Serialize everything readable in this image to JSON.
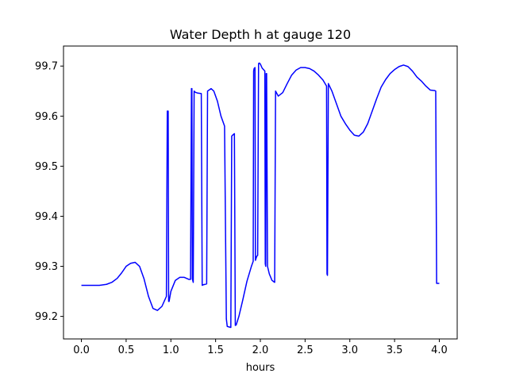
{
  "chart_data": {
    "type": "line",
    "title": "Water Depth h at gauge 120",
    "xlabel": "hours",
    "ylabel": "",
    "xlim": [
      -0.2,
      4.2
    ],
    "ylim": [
      99.155,
      99.74
    ],
    "xticks": [
      "0.0",
      "0.5",
      "1.0",
      "1.5",
      "2.0",
      "2.5",
      "3.0",
      "3.5",
      "4.0"
    ],
    "yticks": [
      "99.2",
      "99.3",
      "99.4",
      "99.5",
      "99.6",
      "99.7"
    ],
    "grid": false,
    "line_color": "#0000ff",
    "series": [
      {
        "name": "",
        "x": [
          0.0,
          0.1,
          0.2,
          0.28,
          0.34,
          0.4,
          0.45,
          0.5,
          0.55,
          0.6,
          0.65,
          0.7,
          0.75,
          0.8,
          0.85,
          0.9,
          0.95,
          0.96,
          0.97,
          0.975,
          0.98,
          1.0,
          1.05,
          1.1,
          1.15,
          1.2,
          1.22,
          1.23,
          1.235,
          1.24,
          1.25,
          1.26,
          1.27,
          1.3,
          1.34,
          1.35,
          1.36,
          1.4,
          1.41,
          1.45,
          1.48,
          1.52,
          1.56,
          1.6,
          1.62,
          1.63,
          1.67,
          1.68,
          1.69,
          1.71,
          1.72,
          1.73,
          1.76,
          1.8,
          1.85,
          1.9,
          1.92,
          1.925,
          1.93,
          1.94,
          1.945,
          1.96,
          1.97,
          1.98,
          1.99,
          2.0,
          2.02,
          2.05,
          2.055,
          2.06,
          2.065,
          2.07,
          2.08,
          2.1,
          2.13,
          2.16,
          2.17,
          2.2,
          2.25,
          2.3,
          2.35,
          2.4,
          2.45,
          2.5,
          2.55,
          2.6,
          2.65,
          2.7,
          2.74,
          2.745,
          2.75,
          2.76,
          2.8,
          2.85,
          2.9,
          2.95,
          3.0,
          3.05,
          3.1,
          3.15,
          3.2,
          3.25,
          3.3,
          3.35,
          3.4,
          3.45,
          3.5,
          3.55,
          3.6,
          3.65,
          3.7,
          3.75,
          3.8,
          3.85,
          3.9,
          3.95,
          3.96,
          3.97,
          4.0
        ],
        "y": [
          99.262,
          99.262,
          99.262,
          99.264,
          99.268,
          99.276,
          99.287,
          99.3,
          99.306,
          99.308,
          99.3,
          99.275,
          99.24,
          99.216,
          99.212,
          99.22,
          99.24,
          99.61,
          99.61,
          99.23,
          99.23,
          99.25,
          99.272,
          99.278,
          99.278,
          99.274,
          99.274,
          99.655,
          99.655,
          99.275,
          99.268,
          99.65,
          99.648,
          99.646,
          99.645,
          99.262,
          99.263,
          99.265,
          99.65,
          99.655,
          99.65,
          99.63,
          99.6,
          99.58,
          99.195,
          99.18,
          99.178,
          99.56,
          99.562,
          99.565,
          99.182,
          99.183,
          99.2,
          99.23,
          99.27,
          99.3,
          99.31,
          99.69,
          99.695,
          99.697,
          99.312,
          99.32,
          99.322,
          99.705,
          99.706,
          99.704,
          99.696,
          99.69,
          99.305,
          99.3,
          99.685,
          99.685,
          99.3,
          99.285,
          99.272,
          99.268,
          99.65,
          99.64,
          99.647,
          99.665,
          99.682,
          99.692,
          99.697,
          99.697,
          99.695,
          99.69,
          99.682,
          99.672,
          99.66,
          99.285,
          99.282,
          99.665,
          99.65,
          99.625,
          99.6,
          99.585,
          99.572,
          99.562,
          99.56,
          99.568,
          99.585,
          99.61,
          99.635,
          99.658,
          99.673,
          99.685,
          99.693,
          99.699,
          99.702,
          99.699,
          99.69,
          99.678,
          99.67,
          99.66,
          99.652,
          99.651,
          99.65,
          99.266,
          99.266
        ]
      }
    ]
  }
}
